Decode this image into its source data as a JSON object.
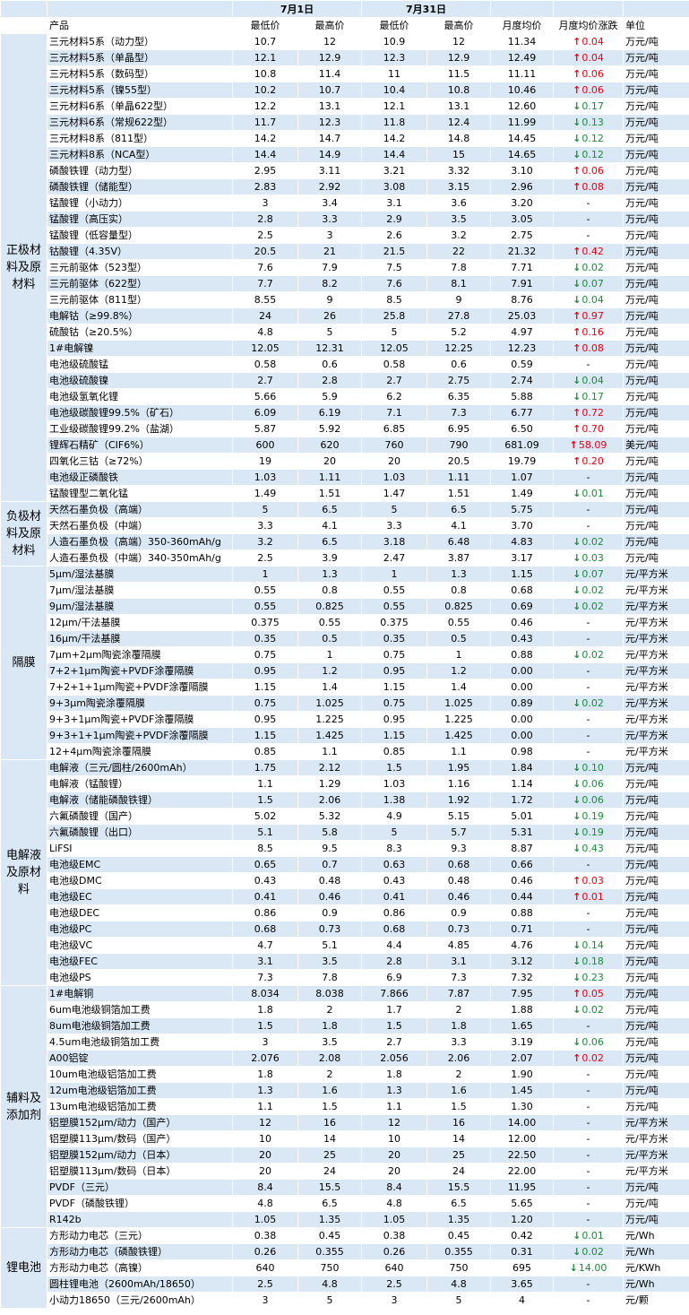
{
  "header": {
    "date1": "7月1日",
    "date2": "7月31日",
    "columns": [
      "产品",
      "最低价",
      "最高价",
      "最低价",
      "最高价",
      "月度均价",
      "月度均价涨跌",
      "单位"
    ]
  },
  "colors": {
    "up": "#e60012",
    "down": "#1a8c3a",
    "tint": "#dae7f5"
  },
  "groups": [
    {
      "category": "正极材料及原材料",
      "rows": [
        [
          "三元材料5系（动力型）",
          "10.7",
          "12",
          "10.9",
          "12",
          "11.34",
          "up",
          "0.04",
          "万元/吨"
        ],
        [
          "三元材料5系（单晶型）",
          "12.1",
          "12.9",
          "12.3",
          "12.9",
          "12.49",
          "up",
          "0.04",
          "万元/吨"
        ],
        [
          "三元材料5系（数码型）",
          "10.8",
          "11.4",
          "11",
          "11.5",
          "11.11",
          "up",
          "0.06",
          "万元/吨"
        ],
        [
          "三元材料5系（镍55型）",
          "10.2",
          "10.7",
          "10.4",
          "10.8",
          "10.46",
          "up",
          "0.06",
          "万元/吨"
        ],
        [
          "三元材料6系（单晶622型）",
          "12.2",
          "13.1",
          "12.1",
          "13.1",
          "12.60",
          "down",
          "0.17",
          "万元/吨"
        ],
        [
          "三元材料6系（常规622型）",
          "11.7",
          "12.3",
          "11.8",
          "12.4",
          "11.99",
          "down",
          "0.13",
          "万元/吨"
        ],
        [
          "三元材料8系（811型）",
          "14.2",
          "14.7",
          "14.2",
          "14.8",
          "14.45",
          "down",
          "0.12",
          "万元/吨"
        ],
        [
          "三元材料8系（NCA型）",
          "14.4",
          "14.9",
          "14.4",
          "15",
          "14.65",
          "down",
          "0.12",
          "万元/吨"
        ],
        [
          "磷酸铁锂（动力型）",
          "2.95",
          "3.11",
          "3.21",
          "3.32",
          "3.10",
          "up",
          "0.06",
          "万元/吨"
        ],
        [
          "磷酸铁锂（储能型）",
          "2.83",
          "2.92",
          "3.08",
          "3.15",
          "2.96",
          "up",
          "0.08",
          "万元/吨"
        ],
        [
          "锰酸锂（小动力）",
          "3",
          "3.4",
          "3.1",
          "3.6",
          "3.20",
          "none",
          "-",
          "万元/吨"
        ],
        [
          "锰酸锂（高压实）",
          "2.8",
          "3.3",
          "2.9",
          "3.5",
          "3.05",
          "none",
          "-",
          "万元/吨"
        ],
        [
          "锰酸锂（低容量型）",
          "2.5",
          "3",
          "2.6",
          "3.2",
          "2.75",
          "none",
          "-",
          "万元/吨"
        ],
        [
          "钴酸锂（4.35V）",
          "20.5",
          "21",
          "21.5",
          "22",
          "21.32",
          "up",
          "0.42",
          "万元/吨"
        ],
        [
          "三元前驱体（523型）",
          "7.6",
          "7.9",
          "7.5",
          "7.8",
          "7.71",
          "down",
          "0.02",
          "万元/吨"
        ],
        [
          "三元前驱体（622型）",
          "7.7",
          "8.2",
          "7.6",
          "8.1",
          "7.91",
          "down",
          "0.07",
          "万元/吨"
        ],
        [
          "三元前驱体（811型）",
          "8.55",
          "9",
          "8.5",
          "9",
          "8.76",
          "down",
          "0.04",
          "万元/吨"
        ],
        [
          "电解钴（≥99.8%）",
          "24",
          "26",
          "25.8",
          "27.8",
          "25.03",
          "up",
          "0.97",
          "万元/吨"
        ],
        [
          "硫酸钴（≥20.5%）",
          "4.8",
          "5",
          "5",
          "5.2",
          "4.97",
          "up",
          "0.16",
          "万元/吨"
        ],
        [
          "1#电解镍",
          "12.05",
          "12.31",
          "12.05",
          "12.25",
          "12.23",
          "up",
          "0.08",
          "万元/吨"
        ],
        [
          "电池级硫酸锰",
          "0.58",
          "0.6",
          "0.58",
          "0.6",
          "0.59",
          "none",
          "-",
          "万元/吨"
        ],
        [
          "电池级硫酸镍",
          "2.7",
          "2.8",
          "2.7",
          "2.75",
          "2.74",
          "down",
          "0.04",
          "万元/吨"
        ],
        [
          "电池级氢氧化锂",
          "5.66",
          "5.9",
          "6.2",
          "6.35",
          "5.88",
          "down",
          "0.17",
          "万元/吨"
        ],
        [
          "电池级碳酸锂99.5%（矿石）",
          "6.09",
          "6.19",
          "7.1",
          "7.3",
          "6.77",
          "up",
          "0.72",
          "万元/吨"
        ],
        [
          "工业级碳酸锂99.2%（盐湖）",
          "5.87",
          "5.92",
          "6.85",
          "6.95",
          "6.50",
          "up",
          "0.70",
          "万元/吨"
        ],
        [
          "锂辉石精矿（CIF6%）",
          "600",
          "620",
          "760",
          "790",
          "681.09",
          "up",
          "58.09",
          "美元/吨"
        ],
        [
          "四氧化三钴（≥72%）",
          "19",
          "20",
          "20",
          "20.5",
          "19.79",
          "up",
          "0.20",
          "万元/吨"
        ],
        [
          "电池级正磷酸铁",
          "1.03",
          "1.11",
          "1.03",
          "1.11",
          "1.07",
          "none",
          "-",
          "万元/吨"
        ],
        [
          "锰酸锂型二氧化锰",
          "1.49",
          "1.51",
          "1.47",
          "1.51",
          "1.49",
          "down",
          "0.01",
          "万元/吨"
        ]
      ]
    },
    {
      "category": "负极材料及原材料",
      "rows": [
        [
          "天然石墨负极（高端）",
          "5",
          "6.5",
          "5",
          "6.5",
          "5.75",
          "none",
          "-",
          "万元/吨"
        ],
        [
          "天然石墨负极（中端）",
          "3.3",
          "4.1",
          "3.3",
          "4.1",
          "3.70",
          "none",
          "-",
          "万元/吨"
        ],
        [
          "人造石墨负极（高端）350-360mAh/g",
          "3.2",
          "6.5",
          "3.18",
          "6.48",
          "4.83",
          "down",
          "0.02",
          "万元/吨"
        ],
        [
          "人造石墨负极（中端）340-350mAh/g",
          "2.5",
          "3.9",
          "2.47",
          "3.87",
          "3.17",
          "down",
          "0.03",
          "万元/吨"
        ]
      ]
    },
    {
      "category": "隔膜",
      "rows": [
        [
          "5μm/湿法基膜",
          "1",
          "1.3",
          "1",
          "1.3",
          "1.15",
          "down",
          "0.07",
          "元/平方米"
        ],
        [
          "7μm/湿法基膜",
          "0.55",
          "0.8",
          "0.55",
          "0.8",
          "0.68",
          "down",
          "0.02",
          "元/平方米"
        ],
        [
          "9μm/湿法基膜",
          "0.55",
          "0.825",
          "0.55",
          "0.825",
          "0.69",
          "down",
          "0.02",
          "元/平方米"
        ],
        [
          "12μm/干法基膜",
          "0.375",
          "0.55",
          "0.375",
          "0.55",
          "0.46",
          "none",
          "-",
          "元/平方米"
        ],
        [
          "16μm/干法基膜",
          "0.35",
          "0.5",
          "0.35",
          "0.5",
          "0.43",
          "none",
          "-",
          "元/平方米"
        ],
        [
          "7μm+2μm陶瓷涂覆隔膜",
          "0.75",
          "1",
          "0.75",
          "1",
          "0.88",
          "down",
          "0.02",
          "元/平方米"
        ],
        [
          "7+2+1μm陶瓷+PVDF涂覆隔膜",
          "0.95",
          "1.2",
          "0.95",
          "1.2",
          "0.00",
          "none",
          "-",
          "元/平方米"
        ],
        [
          "7+2+1+1μm陶瓷+PVDF涂覆隔膜",
          "1.15",
          "1.4",
          "1.15",
          "1.4",
          "0.00",
          "none",
          "-",
          "元/平方米"
        ],
        [
          "9+3μm陶瓷涂覆隔膜",
          "0.75",
          "1.025",
          "0.75",
          "1.025",
          "0.89",
          "down",
          "0.02",
          "元/平方米"
        ],
        [
          "9+3+1μm陶瓷+PVDF涂覆隔膜",
          "0.95",
          "1.225",
          "0.95",
          "1.225",
          "0.00",
          "none",
          "-",
          "元/平方米"
        ],
        [
          "9+3+1+1μm陶瓷+PVDF涂覆隔膜",
          "1.15",
          "1.425",
          "1.15",
          "1.425",
          "0.00",
          "none",
          "-",
          "元/平方米"
        ],
        [
          "12+4μm陶瓷涂覆隔膜",
          "0.85",
          "1.1",
          "0.85",
          "1.1",
          "0.98",
          "none",
          "-",
          "元/平方米"
        ]
      ]
    },
    {
      "category": "电解液及原材料",
      "rows": [
        [
          "电解液（三元/圆柱/2600mAh）",
          "1.75",
          "2.12",
          "1.5",
          "1.95",
          "1.84",
          "down",
          "0.10",
          "万元/吨"
        ],
        [
          "电解液（锰酸锂）",
          "1.1",
          "1.29",
          "1.03",
          "1.16",
          "1.14",
          "down",
          "0.06",
          "万元/吨"
        ],
        [
          "电解液（储能磷酸铁锂）",
          "1.5",
          "2.06",
          "1.38",
          "1.92",
          "1.72",
          "down",
          "0.06",
          "万元/吨"
        ],
        [
          "六氟磷酸锂（国产）",
          "5.02",
          "5.32",
          "4.9",
          "5.15",
          "5.01",
          "down",
          "0.19",
          "万元/吨"
        ],
        [
          "六氟磷酸锂（出口）",
          "5.1",
          "5.8",
          "5",
          "5.7",
          "5.31",
          "down",
          "0.19",
          "万元/吨"
        ],
        [
          "LiFSI",
          "8.5",
          "9.5",
          "8.3",
          "9.3",
          "8.87",
          "down",
          "0.43",
          "万元/吨"
        ],
        [
          "电池级EMC",
          "0.65",
          "0.7",
          "0.63",
          "0.68",
          "0.66",
          "none",
          "-",
          "万元/吨"
        ],
        [
          "电池级DMC",
          "0.43",
          "0.48",
          "0.43",
          "0.48",
          "0.46",
          "up",
          "0.03",
          "万元/吨"
        ],
        [
          "电池级EC",
          "0.41",
          "0.46",
          "0.41",
          "0.46",
          "0.44",
          "up",
          "0.01",
          "万元/吨"
        ],
        [
          "电池级DEC",
          "0.86",
          "0.9",
          "0.86",
          "0.9",
          "0.88",
          "none",
          "-",
          "万元/吨"
        ],
        [
          "电池级PC",
          "0.68",
          "0.73",
          "0.68",
          "0.73",
          "0.71",
          "none",
          "-",
          "万元/吨"
        ],
        [
          "电池级VC",
          "4.7",
          "5.1",
          "4.4",
          "4.85",
          "4.76",
          "down",
          "0.14",
          "万元/吨"
        ],
        [
          "电池级FEC",
          "3.1",
          "3.5",
          "2.8",
          "3.1",
          "3.12",
          "down",
          "0.18",
          "万元/吨"
        ],
        [
          "电池级PS",
          "7.3",
          "7.8",
          "6.9",
          "7.3",
          "7.32",
          "down",
          "0.23",
          "万元/吨"
        ]
      ]
    },
    {
      "category": "辅料及添加剂",
      "rows": [
        [
          "1#电解铜",
          "8.034",
          "8.038",
          "7.866",
          "7.87",
          "7.95",
          "up",
          "0.05",
          "万元/吨"
        ],
        [
          "6um电池级铜箔加工费",
          "1.8",
          "2",
          "1.7",
          "2",
          "1.88",
          "down",
          "0.02",
          "万元/吨"
        ],
        [
          "8um电池级铜箔加工费",
          "1.5",
          "1.8",
          "1.5",
          "1.8",
          "1.65",
          "none",
          "-",
          "万元/吨"
        ],
        [
          "4.5um电池级铜箔加工费",
          "3",
          "3.5",
          "2.7",
          "3.3",
          "3.19",
          "down",
          "0.06",
          "万元/吨"
        ],
        [
          "A00铝锭",
          "2.076",
          "2.08",
          "2.056",
          "2.06",
          "2.07",
          "up",
          "0.02",
          "万元/吨"
        ],
        [
          "10um电池级铝箔加工费",
          "1.8",
          "2",
          "1.8",
          "2",
          "1.90",
          "none",
          "-",
          "万元/吨"
        ],
        [
          "12um电池级铝箔加工费",
          "1.3",
          "1.6",
          "1.3",
          "1.6",
          "1.45",
          "none",
          "-",
          "万元/吨"
        ],
        [
          "13um电池级铝箔加工费",
          "1.1",
          "1.5",
          "1.1",
          "1.5",
          "1.30",
          "none",
          "-",
          "万元/吨"
        ],
        [
          "铝塑膜152μm/动力（国产）",
          "12",
          "16",
          "12",
          "16",
          "14.00",
          "none",
          "-",
          "元/平方米"
        ],
        [
          "铝塑膜113μm/数码（国产）",
          "10",
          "14",
          "10",
          "14",
          "12.00",
          "none",
          "-",
          "元/平方米"
        ],
        [
          "铝塑膜152μm/动力（日本）",
          "20",
          "25",
          "20",
          "25",
          "22.50",
          "none",
          "-",
          "元/平方米"
        ],
        [
          "铝塑膜113μm/数码（日本）",
          "20",
          "24",
          "20",
          "24",
          "22.00",
          "none",
          "-",
          "元/平方米"
        ],
        [
          "PVDF（三元）",
          "8.4",
          "15.5",
          "8.4",
          "15.5",
          "11.95",
          "none",
          "-",
          "万元/吨"
        ],
        [
          "PVDF（磷酸铁锂）",
          "4.8",
          "6.5",
          "4.8",
          "6.5",
          "5.65",
          "none",
          "-",
          "万元/吨"
        ],
        [
          "R142b",
          "1.05",
          "1.35",
          "1.05",
          "1.35",
          "1.20",
          "none",
          "-",
          "万元/吨"
        ]
      ]
    },
    {
      "category": "锂电池",
      "rows": [
        [
          "方形动力电芯（三元）",
          "0.38",
          "0.45",
          "0.38",
          "0.45",
          "0.42",
          "down",
          "0.01",
          "元/Wh"
        ],
        [
          "方形动力电芯（磷酸铁锂）",
          "0.26",
          "0.355",
          "0.26",
          "0.355",
          "0.31",
          "down",
          "0.02",
          "元/Wh"
        ],
        [
          "方形动力电芯（高镍）",
          "640",
          "750",
          "640",
          "750",
          "695",
          "down",
          "14.00",
          "元/KWh"
        ],
        [
          "圆柱锂电池（2600mAh/18650）",
          "2.5",
          "4.8",
          "2.5",
          "4.8",
          "3.65",
          "none",
          "-",
          "元/Wh"
        ],
        [
          "小动力18650（三元/2600mAh）",
          "3",
          "5",
          "3",
          "5",
          "4",
          "none",
          "-",
          "元/颗"
        ]
      ]
    }
  ]
}
